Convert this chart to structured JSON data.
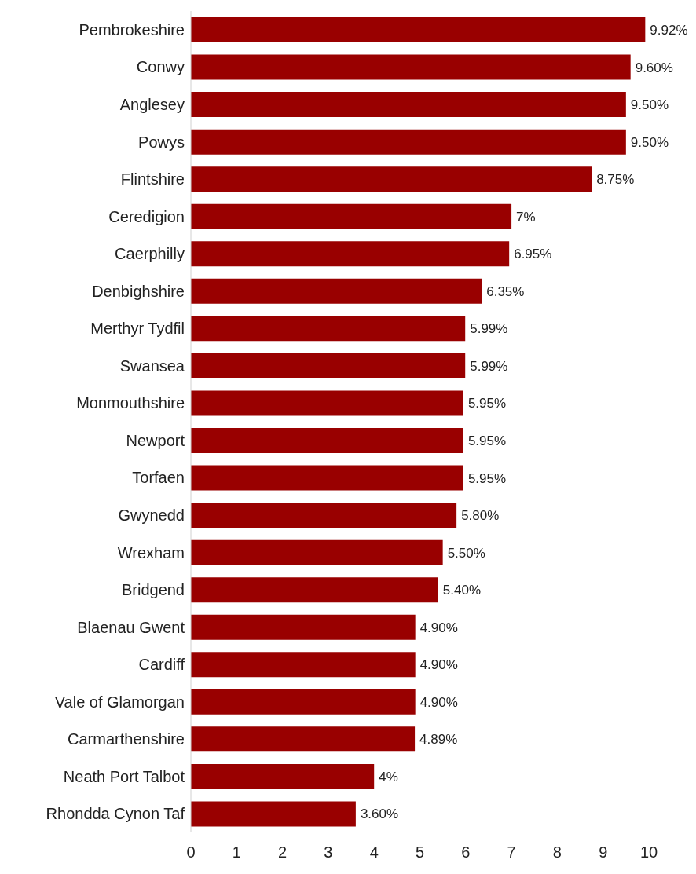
{
  "chart_data": {
    "type": "bar",
    "orientation": "horizontal",
    "categories": [
      "Pembrokeshire",
      "Conwy",
      "Anglesey",
      "Powys",
      "Flintshire",
      "Ceredigion",
      "Caerphilly",
      "Denbighshire",
      "Merthyr Tydfil",
      "Swansea",
      "Monmouthshire",
      "Newport",
      "Torfaen",
      "Gwynedd",
      "Wrexham",
      "Bridgend",
      "Blaenau Gwent",
      "Cardiff",
      "Vale of Glamorgan",
      "Carmarthenshire",
      "Neath Port Talbot",
      "Rhondda Cynon Taf"
    ],
    "values": [
      9.92,
      9.6,
      9.5,
      9.5,
      8.75,
      7,
      6.95,
      6.35,
      5.99,
      5.99,
      5.95,
      5.95,
      5.95,
      5.8,
      5.5,
      5.4,
      4.9,
      4.9,
      4.9,
      4.89,
      4,
      3.6
    ],
    "value_labels": [
      "9.92%",
      "9.60%",
      "9.50%",
      "9.50%",
      "8.75%",
      "7%",
      "6.95%",
      "6.35%",
      "5.99%",
      "5.99%",
      "5.95%",
      "5.95%",
      "5.95%",
      "5.80%",
      "5.50%",
      "5.40%",
      "4.90%",
      "4.90%",
      "4.90%",
      "4.89%",
      "4%",
      "3.60%"
    ],
    "color": "#990000",
    "xlim": [
      0,
      10
    ],
    "xticks": [
      0,
      1,
      2,
      3,
      4,
      5,
      6,
      7,
      8,
      9,
      10
    ],
    "grid": false
  }
}
